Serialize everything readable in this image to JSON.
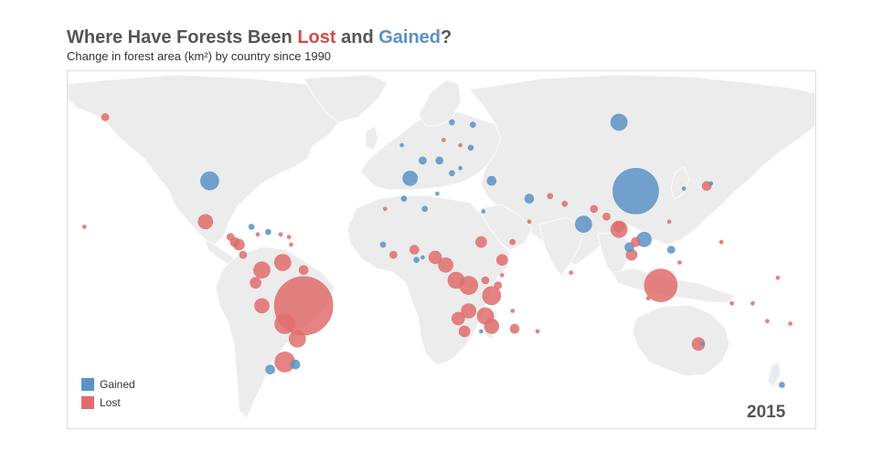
{
  "title": {
    "prefix": "Where Have Forests Been ",
    "lost": "Lost",
    "middle": " and ",
    "gained": "Gained",
    "suffix": "?"
  },
  "subtitle": "Change in forest area (km²) by country since 1990",
  "year": "2015",
  "legend": [
    {
      "label": "Gained",
      "color": "#5b93c6"
    },
    {
      "label": "Lost",
      "color": "#e06d6d"
    }
  ],
  "colors": {
    "gained": "#5b93c6",
    "lost": "#e06d6d",
    "land": "#ececec",
    "border": "#ffffff"
  },
  "chart_data": {
    "type": "scatter",
    "encoding": "proportional symbol map; circle area = change in forest area",
    "series": [
      {
        "name": "Gained",
        "color": "#5b93c6",
        "points": [
          {
            "lon": 96,
            "lat": 62,
            "r": 9
          },
          {
            "lon": -100,
            "lat": 39,
            "r": 10
          },
          {
            "lon": 104,
            "lat": 35,
            "r": 25
          },
          {
            "lon": 79,
            "lat": 22,
            "r": 9
          },
          {
            "lon": 108,
            "lat": 16,
            "r": 8
          },
          {
            "lon": 101,
            "lat": 13,
            "r": 5
          },
          {
            "lon": 121,
            "lat": 12,
            "r": 4
          },
          {
            "lon": -4,
            "lat": 40,
            "r": 8
          },
          {
            "lon": 35,
            "lat": 39,
            "r": 5
          },
          {
            "lon": 53,
            "lat": 32,
            "r": 5
          },
          {
            "lon": 10,
            "lat": 47,
            "r": 4
          },
          {
            "lon": 2,
            "lat": 47,
            "r": 4
          },
          {
            "lon": 16,
            "lat": 42,
            "r": 3
          },
          {
            "lon": 26,
            "lat": 61,
            "r": 3
          },
          {
            "lon": 16,
            "lat": 62,
            "r": 3
          },
          {
            "lon": 25,
            "lat": 52,
            "r": 3
          },
          {
            "lon": -59,
            "lat": -33,
            "r": 5
          },
          {
            "lon": -71,
            "lat": -35,
            "r": 5
          },
          {
            "lon": -72,
            "lat": 19,
            "r": 3
          },
          {
            "lon": -80,
            "lat": 21,
            "r": 3
          },
          {
            "lon": 174,
            "lat": -41,
            "r": 3
          },
          {
            "lon": -7,
            "lat": 32,
            "r": 3
          },
          {
            "lon": 3,
            "lat": 28,
            "r": 3
          },
          {
            "lon": 9,
            "lat": 34,
            "r": 2
          },
          {
            "lon": -17,
            "lat": 14,
            "r": 3
          },
          {
            "lon": -1,
            "lat": 8,
            "r": 3
          },
          {
            "lon": 2,
            "lat": 9,
            "r": 2
          },
          {
            "lon": 30,
            "lat": -20,
            "r": 2
          },
          {
            "lon": 136,
            "lat": -25,
            "r": 2
          },
          {
            "lon": 31,
            "lat": 27,
            "r": 2
          },
          {
            "lon": 127,
            "lat": 36,
            "r": 2
          },
          {
            "lon": 140,
            "lat": 38,
            "r": 2
          },
          {
            "lon": 20,
            "lat": 44,
            "r": 2
          },
          {
            "lon": -8,
            "lat": 53,
            "r": 2
          }
        ]
      },
      {
        "name": "Lost",
        "color": "#e06d6d",
        "points": [
          {
            "lon": -55,
            "lat": -10,
            "r": 32
          },
          {
            "lon": 116,
            "lat": -2,
            "r": 18
          },
          {
            "lon": 96,
            "lat": 20,
            "r": 9
          },
          {
            "lon": 96,
            "lat": 21,
            "r": 6
          },
          {
            "lon": 102,
            "lat": 10,
            "r": 6
          },
          {
            "lon": 104,
            "lat": 15,
            "r": 5
          },
          {
            "lon": 138,
            "lat": 37,
            "r": 5
          },
          {
            "lon": 90,
            "lat": 25,
            "r": 4
          },
          {
            "lon": 84,
            "lat": 28,
            "r": 4
          },
          {
            "lon": 70,
            "lat": 30,
            "r": 3
          },
          {
            "lon": 24,
            "lat": -2,
            "r": 10
          },
          {
            "lon": 35,
            "lat": -6,
            "r": 10
          },
          {
            "lon": 18,
            "lat": 0,
            "r": 9
          },
          {
            "lon": 13,
            "lat": 6,
            "r": 8
          },
          {
            "lon": 8,
            "lat": 9,
            "r": 7
          },
          {
            "lon": 32,
            "lat": -14,
            "r": 9
          },
          {
            "lon": 24,
            "lat": -12,
            "r": 8
          },
          {
            "lon": 35,
            "lat": -18,
            "r": 8
          },
          {
            "lon": 19,
            "lat": -15,
            "r": 7
          },
          {
            "lon": 22,
            "lat": -20,
            "r": 6
          },
          {
            "lon": 30,
            "lat": 15,
            "r": 6
          },
          {
            "lon": 40,
            "lat": 8,
            "r": 6
          },
          {
            "lon": -2,
            "lat": 12,
            "r": 5
          },
          {
            "lon": -12,
            "lat": 10,
            "r": 4
          },
          {
            "lon": 46,
            "lat": -19,
            "r": 5
          },
          {
            "lon": 32,
            "lat": 0,
            "r": 4
          },
          {
            "lon": 38,
            "lat": -2,
            "r": 4
          },
          {
            "lon": -64,
            "lat": -17,
            "r": 11
          },
          {
            "lon": -65,
            "lat": 7,
            "r": 9
          },
          {
            "lon": -75,
            "lat": 4,
            "r": 9
          },
          {
            "lon": -58,
            "lat": -23,
            "r": 9
          },
          {
            "lon": -64,
            "lat": -32,
            "r": 11
          },
          {
            "lon": -75,
            "lat": -10,
            "r": 8
          },
          {
            "lon": -78,
            "lat": -1,
            "r": 6
          },
          {
            "lon": -55,
            "lat": 4,
            "r": 5
          },
          {
            "lon": -102,
            "lat": 23,
            "r": 8
          },
          {
            "lon": -86,
            "lat": 14,
            "r": 6
          },
          {
            "lon": -88,
            "lat": 15,
            "r": 5
          },
          {
            "lon": -84,
            "lat": 10,
            "r": 4
          },
          {
            "lon": -90,
            "lat": 17,
            "r": 4
          },
          {
            "lon": 134,
            "lat": -25,
            "r": 7
          },
          {
            "lon": -150,
            "lat": 64,
            "r": 4
          },
          {
            "lon": 63,
            "lat": 33,
            "r": 3
          },
          {
            "lon": 45,
            "lat": 15,
            "r": 3
          },
          {
            "lon": 53,
            "lat": 23,
            "r": 2
          },
          {
            "lon": 40,
            "lat": 2,
            "r": 2
          },
          {
            "lon": 45,
            "lat": -12,
            "r": 2
          },
          {
            "lon": 57,
            "lat": -20,
            "r": 2
          },
          {
            "lon": -61,
            "lat": 14,
            "r": 2
          },
          {
            "lon": -66,
            "lat": 18,
            "r": 2
          },
          {
            "lon": -62,
            "lat": 17,
            "r": 2
          },
          {
            "lon": -77,
            "lat": 18,
            "r": 2
          },
          {
            "lon": 150,
            "lat": -9,
            "r": 2
          },
          {
            "lon": 160,
            "lat": -9,
            "r": 2
          },
          {
            "lon": 167,
            "lat": -16,
            "r": 2
          },
          {
            "lon": 178,
            "lat": -17,
            "r": 2
          },
          {
            "lon": 172,
            "lat": 1,
            "r": 2
          },
          {
            "lon": 125,
            "lat": 7,
            "r": 2
          },
          {
            "lon": 120,
            "lat": 23,
            "r": 2
          },
          {
            "lon": -16,
            "lat": 28,
            "r": 2
          },
          {
            "lon": 20,
            "lat": 53,
            "r": 2
          },
          {
            "lon": 12,
            "lat": 55,
            "r": 2
          },
          {
            "lon": -160,
            "lat": 21,
            "r": 2
          },
          {
            "lon": 145,
            "lat": 15,
            "r": 2
          },
          {
            "lon": 73,
            "lat": 3,
            "r": 2
          },
          {
            "lon": 110,
            "lat": -7,
            "r": 2
          }
        ]
      }
    ]
  }
}
